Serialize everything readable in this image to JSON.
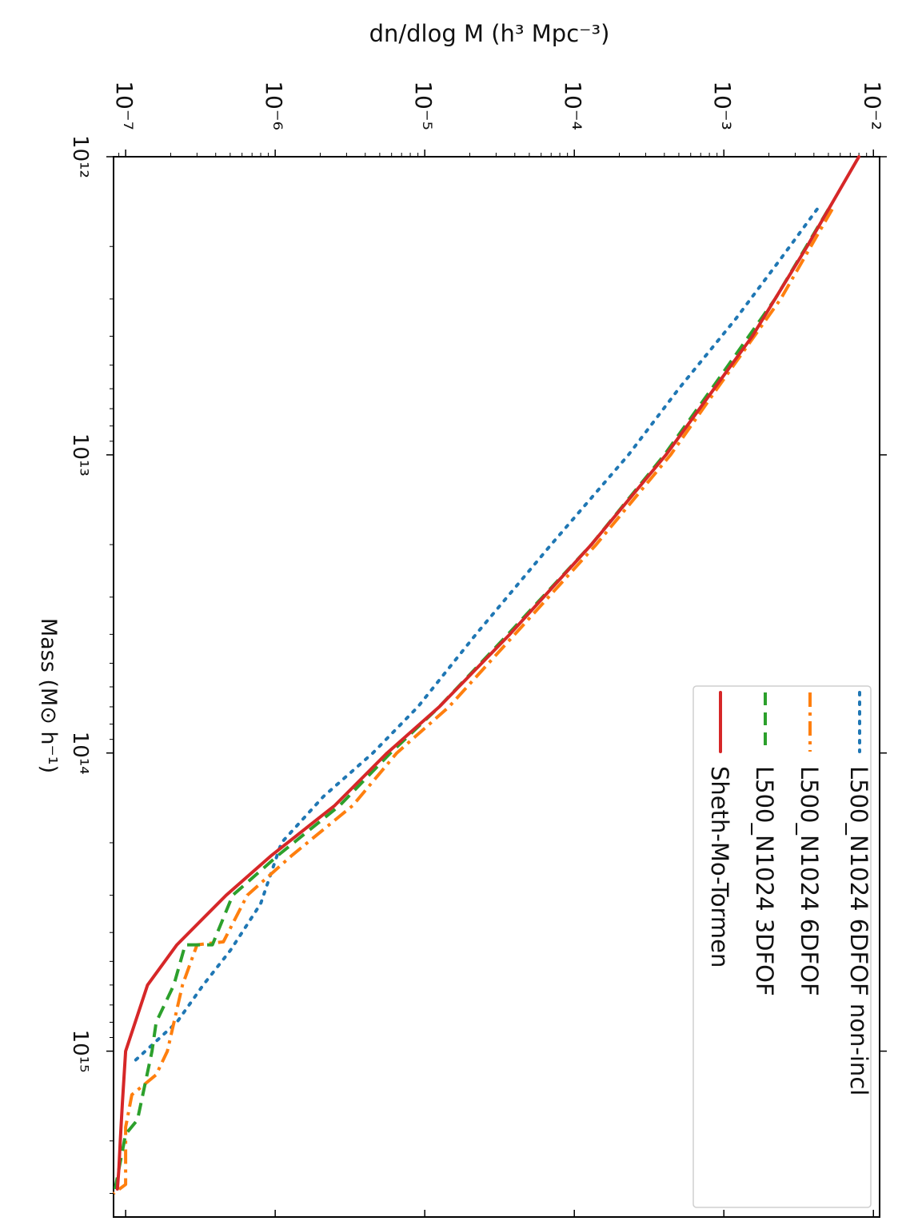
{
  "chart_data": {
    "type": "line",
    "title": "",
    "xlabel": "Mass (M⊙ h⁻¹)",
    "ylabel": "dn/dlog M (h³ Mpc⁻³)",
    "xscale": "log",
    "yscale": "log",
    "xlim": [
      1000000000000.0,
      3600000000000000.0
    ],
    "ylim": [
      8.3e-08,
      0.011
    ],
    "x_tick_labels": [
      "10¹²",
      "10¹³",
      "10¹⁴",
      "10¹⁵"
    ],
    "x_tick_values": [
      1000000000000.0,
      10000000000000.0,
      100000000000000.0,
      1000000000000000.0
    ],
    "y_tick_labels": [
      "10⁻⁷",
      "10⁻⁶",
      "10⁻⁵",
      "10⁻⁴",
      "10⁻³",
      "10⁻²"
    ],
    "y_tick_values": [
      1e-07,
      1e-06,
      1e-05,
      0.0001,
      0.001,
      0.01
    ],
    "orientation": "rotated 90 degrees clockwise",
    "grid": false,
    "legend_position": "top-right",
    "series": [
      {
        "name": "L500_N1024 6DFOF non-incl",
        "color": "#1f77b4",
        "dash": "dotted",
        "x": [
          1500000000000.0,
          2200000000000.0,
          3500000000000.0,
          6000000000000.0,
          10000000000000.0,
          20000000000000.0,
          40000000000000.0,
          70000000000000.0,
          100000000000000.0,
          140000000000000.0,
          200000000000000.0,
          320000000000000.0,
          400000000000000.0,
          460000000000000.0,
          600000000000000.0,
          800000000000000.0,
          1100000000000000.0
        ],
        "y": [
          0.0042,
          0.0024,
          0.0012,
          0.0005,
          0.00023,
          7e-05,
          2.2e-05,
          9e-06,
          4.5e-06,
          2.1e-06,
          1.1e-06,
          8e-07,
          6e-07,
          5e-07,
          3.3e-07,
          2.2e-07,
          1.1e-07
        ]
      },
      {
        "name": "L500_N1024 6DFOF",
        "color": "#ff7f0e",
        "dash": "dashdot",
        "x": [
          1500000000000.0,
          3000000000000.0,
          6000000000000.0,
          10000000000000.0,
          20000000000000.0,
          40000000000000.0,
          70000000000000.0,
          100000000000000.0,
          150000000000000.0,
          220000000000000.0,
          300000000000000.0,
          430000000000000.0,
          440000000000000.0,
          600000000000000.0,
          1000000000000000.0,
          1200000000000000.0,
          1400000000000000.0,
          1800000000000000.0,
          2800000000000000.0,
          3000000000000000.0
        ],
        "y": [
          0.0053,
          0.0024,
          0.0009,
          0.00044,
          0.00014,
          4e-05,
          1.45e-05,
          6.5e-06,
          3.3e-06,
          1.3e-06,
          6.5e-07,
          4.5e-07,
          3e-07,
          2.4e-07,
          1.9e-07,
          1.6e-07,
          1.1e-07,
          1e-07,
          1e-07,
          8.3e-08
        ]
      },
      {
        "name": "L500_N1024 3DFOF",
        "color": "#2ca02c",
        "dash": "dashed",
        "x": [
          1500000000000.0,
          3000000000000.0,
          6000000000000.0,
          10000000000000.0,
          20000000000000.0,
          40000000000000.0,
          70000000000000.0,
          100000000000000.0,
          150000000000000.0,
          220000000000000.0,
          300000000000000.0,
          440000000000000.0,
          440000000000000.0,
          600000000000000.0,
          800000000000000.0,
          1000000000000000.0,
          1700000000000000.0,
          1900000000000000.0,
          2900000000000000.0
        ],
        "y": [
          0.005,
          0.0022,
          0.00083,
          0.0004,
          0.00013,
          3.6e-05,
          1.25e-05,
          5.9e-06,
          2.7e-06,
          1.05e-06,
          5.2e-07,
          3.8e-07,
          2.5e-07,
          2.1e-07,
          1.6e-07,
          1.5e-07,
          1.2e-07,
          1e-07,
          8.5e-08
        ]
      },
      {
        "name": "Sheth-Mo-Tormen",
        "color": "#d62728",
        "dash": "solid",
        "x": [
          1000000000000.0,
          2000000000000.0,
          4000000000000.0,
          10000000000000.0,
          20000000000000.0,
          40000000000000.0,
          70000000000000.0,
          100000000000000.0,
          150000000000000.0,
          220000000000000.0,
          300000000000000.0,
          440000000000000.0,
          600000000000000.0,
          1000000000000000.0,
          1500000000000000.0,
          2000000000000000.0,
          2500000000000000.0,
          2900000000000000.0
        ],
        "y": [
          0.008,
          0.0036,
          0.00155,
          0.00041,
          0.00013,
          3.7e-05,
          1.25e-05,
          5.6e-06,
          2.5e-06,
          9.5e-07,
          4.7e-07,
          2.2e-07,
          1.4e-07,
          1e-07,
          9.5e-08,
          9.2e-08,
          9e-08,
          8.8e-08
        ]
      }
    ]
  }
}
